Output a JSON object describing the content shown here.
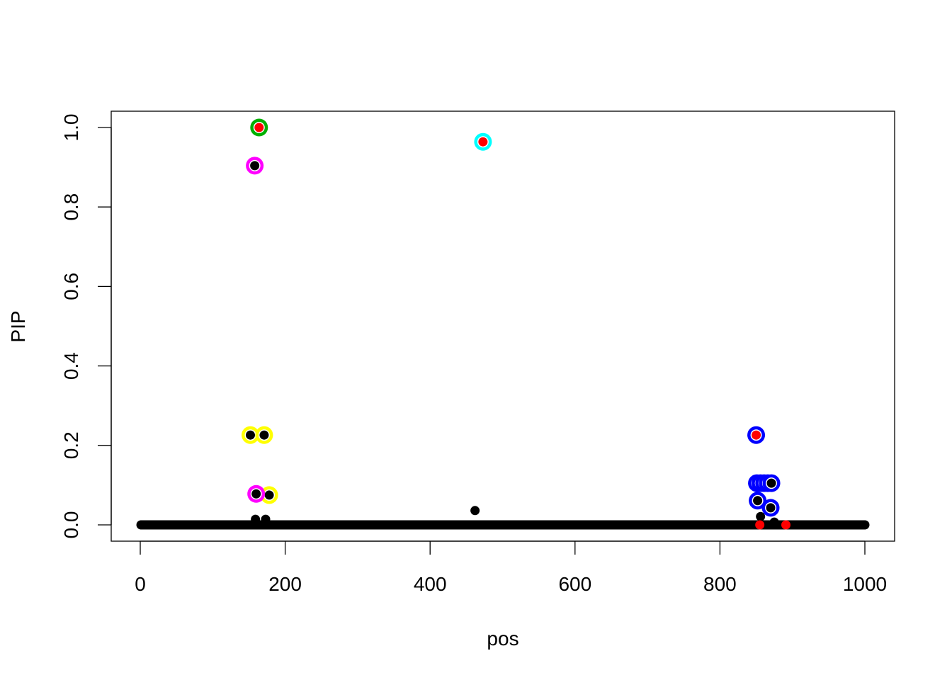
{
  "chart_data": {
    "type": "scatter",
    "title": "",
    "xlabel": "pos",
    "ylabel": "PIP",
    "xlim": [
      0,
      1000
    ],
    "ylim": [
      0,
      1
    ],
    "x_ticks": [
      "0",
      "200",
      "400",
      "600",
      "800",
      "1000"
    ],
    "y_ticks": [
      "0.0",
      "0.2",
      "0.4",
      "0.6",
      "0.8",
      "1.0"
    ],
    "grid": false,
    "legend": "none",
    "baseline": {
      "x_range": [
        1,
        1000
      ],
      "y": 0,
      "color": "#000000"
    },
    "points": [
      {
        "x": 164,
        "y": 1.0,
        "fill": "#ff0000",
        "ring": "#00b000"
      },
      {
        "x": 158,
        "y": 0.904,
        "fill": "#000000",
        "ring": "#ff00ff"
      },
      {
        "x": 473,
        "y": 0.964,
        "fill": "#ff0000",
        "ring": "#00ffff"
      },
      {
        "x": 152,
        "y": 0.226,
        "fill": "#000000",
        "ring": "#ffff00"
      },
      {
        "x": 171,
        "y": 0.226,
        "fill": "#000000",
        "ring": "#ffff00"
      },
      {
        "x": 178,
        "y": 0.075,
        "fill": "#000000",
        "ring": "#ffff00"
      },
      {
        "x": 160,
        "y": 0.078,
        "fill": "#000000",
        "ring": "#ff00ff"
      },
      {
        "x": 159,
        "y": 0.014,
        "fill": "#000000",
        "ring": null
      },
      {
        "x": 173,
        "y": 0.014,
        "fill": "#000000",
        "ring": null
      },
      {
        "x": 462,
        "y": 0.036,
        "fill": "#000000",
        "ring": null
      },
      {
        "x": 850,
        "y": 0.226,
        "fill": "#ff0000",
        "ring": "#0000ff"
      },
      {
        "x": 851,
        "y": 0.105,
        "fill": "#000000",
        "ring": "#0000ff"
      },
      {
        "x": 856,
        "y": 0.105,
        "fill": "#000000",
        "ring": "#0000ff"
      },
      {
        "x": 861,
        "y": 0.105,
        "fill": "#000000",
        "ring": "#0000ff"
      },
      {
        "x": 866,
        "y": 0.105,
        "fill": "#000000",
        "ring": "#0000ff"
      },
      {
        "x": 871,
        "y": 0.105,
        "fill": "#000000",
        "ring": "#0000ff"
      },
      {
        "x": 852,
        "y": 0.061,
        "fill": "#000000",
        "ring": "#0000ff"
      },
      {
        "x": 870,
        "y": 0.043,
        "fill": "#000000",
        "ring": "#0000ff"
      },
      {
        "x": 856,
        "y": 0.021,
        "fill": "#000000",
        "ring": null
      },
      {
        "x": 875,
        "y": 0.007,
        "fill": "#000000",
        "ring": null
      },
      {
        "x": 855,
        "y": 0.0,
        "fill": "#ff0000",
        "ring": null
      },
      {
        "x": 891,
        "y": 0.0,
        "fill": "#ff0000",
        "ring": null
      }
    ]
  }
}
